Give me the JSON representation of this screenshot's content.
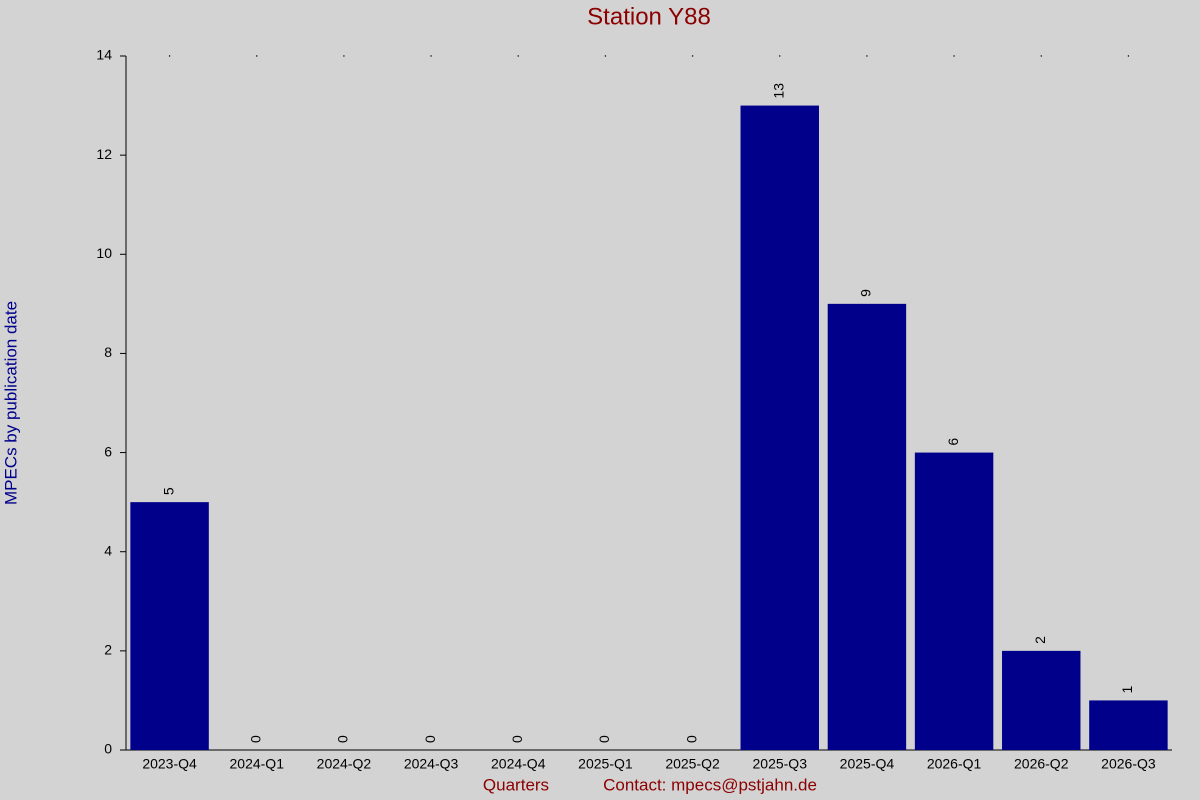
{
  "chart_data": {
    "type": "bar",
    "title": "Station Y88",
    "y_label": "MPECs by publication date",
    "x_label": "Quarters",
    "note": "Contact: mpecs@pstjahn.de",
    "categories": [
      "2023-Q4",
      "2024-Q1",
      "2024-Q2",
      "2024-Q3",
      "2024-Q4",
      "2025-Q1",
      "2025-Q2",
      "2025-Q3",
      "2025-Q4",
      "2026-Q1",
      "2026-Q2",
      "2026-Q3"
    ],
    "values": [
      5,
      0,
      0,
      0,
      0,
      0,
      0,
      13,
      9,
      6,
      2,
      1
    ],
    "color": "#00008b",
    "ylim": [
      0,
      14
    ],
    "yticks": [
      0,
      2,
      4,
      6,
      8,
      10,
      12,
      14
    ],
    "grid": false
  }
}
